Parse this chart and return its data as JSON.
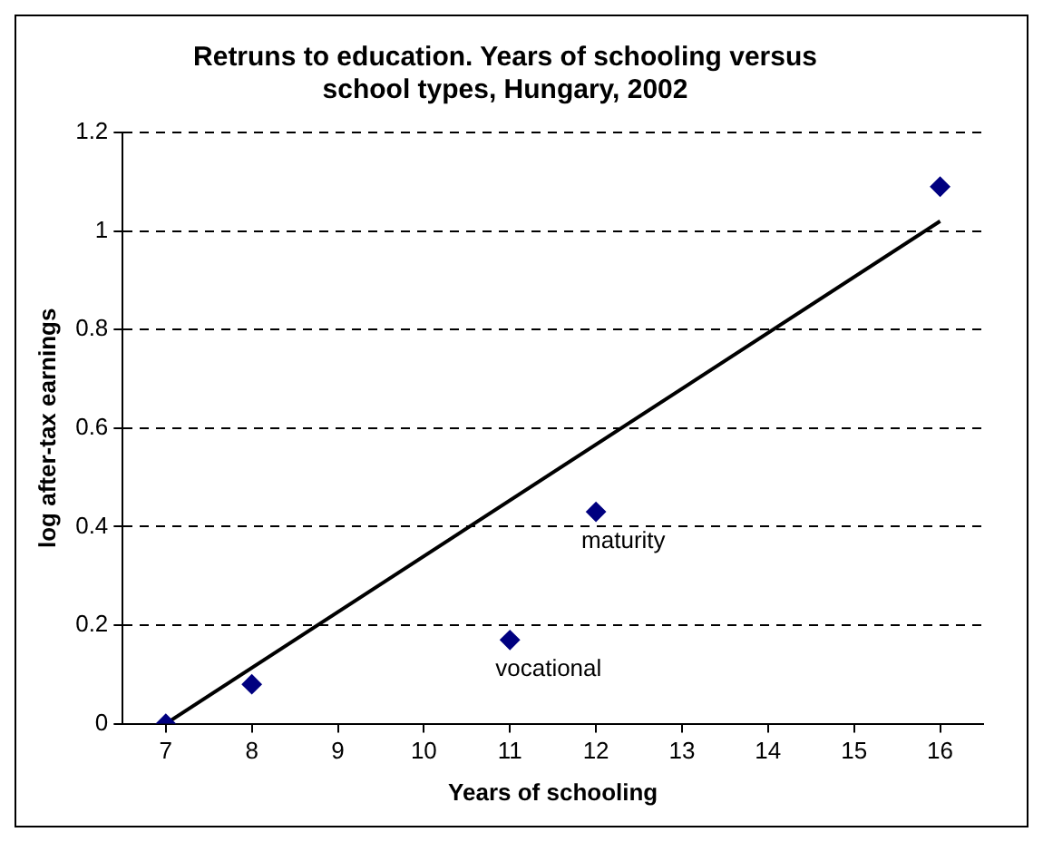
{
  "chart_data": {
    "type": "scatter",
    "title": "Retruns to education. Years of schooling versus school types, Hungary, 2002",
    "xlabel": "Years of schooling",
    "ylabel": "log after-tax earnings",
    "series": [
      {
        "color": "#000080",
        "marker": "diamond",
        "x": [
          7,
          8,
          11,
          12,
          16
        ],
        "values": [
          0,
          0.08,
          0.17,
          0.43,
          1.09
        ]
      },
      {
        "type": "line",
        "color": "#000000",
        "marker": "none",
        "x": [
          7,
          16
        ],
        "values": [
          0,
          1.02
        ]
      }
    ],
    "xlim": [
      6.5,
      16.5
    ],
    "xticks": [
      7,
      8,
      9,
      10,
      11,
      12,
      13,
      14,
      15,
      16
    ],
    "ylim": [
      0,
      1.2
    ],
    "yticks": [
      0,
      0.2,
      0.4,
      0.6,
      0.8,
      1,
      1.2
    ],
    "grid": "y",
    "legend": false,
    "annotations": [
      {
        "text": "maturity",
        "x": 12,
        "y": 0.43
      },
      {
        "text": "vocational",
        "x": 11,
        "y": 0.17
      }
    ]
  }
}
